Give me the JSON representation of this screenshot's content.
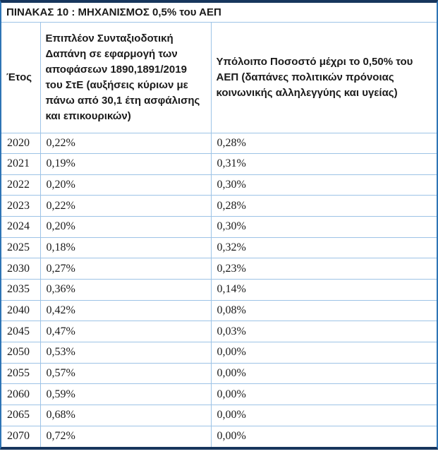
{
  "table": {
    "title": "ΠΙΝΑΚΑΣ 10 : ΜΗΧΑΝΙΣΜΟΣ 0,5% του ΑΕΠ",
    "columns": [
      {
        "label": "Έτος"
      },
      {
        "label": "Επιπλέον Συνταξιοδοτική Δαπάνη σε εφαρμογή των αποφάσεων 1890,1891/2019 του ΣτΕ (αυξήσεις κύριων με πάνω από 30,1 έτη ασφάλισης και επικουρικών)"
      },
      {
        "label": "Υπόλοιπο Ποσοστό μέχρι το 0,50% του ΑΕΠ (δαπάνες πολιτικών πρόνοιας κοινωνικής αλληλεγγύης και υγείας)"
      }
    ],
    "rows": [
      {
        "year": "2020",
        "extra": "0,22%",
        "remaining": "0,28%"
      },
      {
        "year": "2021",
        "extra": "0,19%",
        "remaining": "0,31%"
      },
      {
        "year": "2022",
        "extra": "0,20%",
        "remaining": "0,30%"
      },
      {
        "year": "2023",
        "extra": "0,22%",
        "remaining": "0,28%"
      },
      {
        "year": "2024",
        "extra": "0,20%",
        "remaining": "0,30%"
      },
      {
        "year": "2025",
        "extra": "0,18%",
        "remaining": "0,32%"
      },
      {
        "year": "2030",
        "extra": "0,27%",
        "remaining": "0,23%"
      },
      {
        "year": "2035",
        "extra": "0,36%",
        "remaining": "0,14%"
      },
      {
        "year": "2040",
        "extra": "0,42%",
        "remaining": "0,08%"
      },
      {
        "year": "2045",
        "extra": "0,47%",
        "remaining": "0,03%"
      },
      {
        "year": "2050",
        "extra": "0,53%",
        "remaining": "0,00%"
      },
      {
        "year": "2055",
        "extra": "0,57%",
        "remaining": "0,00%"
      },
      {
        "year": "2060",
        "extra": "0,59%",
        "remaining": "0,00%"
      },
      {
        "year": "2065",
        "extra": "0,68%",
        "remaining": "0,00%"
      },
      {
        "year": "2070",
        "extra": "0,72%",
        "remaining": "0,00%"
      }
    ]
  },
  "colors": {
    "outer_top_bottom_border": "#17365D",
    "outer_side_border": "#2E74B5",
    "inner_gridline": "#9DC3E6",
    "text": "#1A1A1A",
    "background": "#FFFFFF"
  }
}
